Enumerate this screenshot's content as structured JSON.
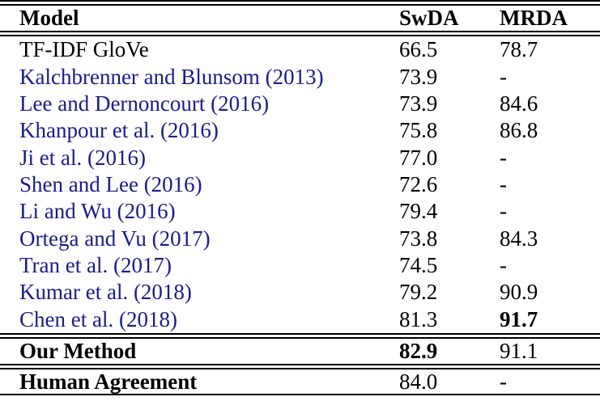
{
  "header": {
    "model": "Model",
    "swda": "SwDA",
    "mrda": "MRDA"
  },
  "rows": [
    {
      "group": "body",
      "model": "TF-IDF GloVe",
      "swda": "66.5",
      "mrda": "78.7",
      "citation": false
    },
    {
      "group": "body",
      "model": "Kalchbrenner and Blunsom (2013)",
      "swda": "73.9",
      "mrda": "-",
      "citation": true
    },
    {
      "group": "body",
      "model": "Lee and Dernoncourt (2016)",
      "swda": "73.9",
      "mrda": "84.6",
      "citation": true
    },
    {
      "group": "body",
      "model": "Khanpour et al. (2016)",
      "swda": "75.8",
      "mrda": "86.8",
      "citation": true
    },
    {
      "group": "body",
      "model": "Ji et al. (2016)",
      "swda": "77.0",
      "mrda": "-",
      "citation": true
    },
    {
      "group": "body",
      "model": "Shen and Lee (2016)",
      "swda": "72.6",
      "mrda": "-",
      "citation": true
    },
    {
      "group": "body",
      "model": "Li and Wu (2016)",
      "swda": "79.4",
      "mrda": "-",
      "citation": true
    },
    {
      "group": "body",
      "model": "Ortega and Vu (2017)",
      "swda": "73.8",
      "mrda": "84.3",
      "citation": true
    },
    {
      "group": "body",
      "model": "Tran et al. (2017)",
      "swda": "74.5",
      "mrda": "-",
      "citation": true
    },
    {
      "group": "body",
      "model": "Kumar et al. (2018)",
      "swda": "79.2",
      "mrda": "90.9",
      "citation": true
    },
    {
      "group": "body",
      "model": "Chen et al. (2018)",
      "swda": "81.3",
      "mrda": "91.7",
      "citation": true,
      "mrda_bold": true
    },
    {
      "group": "ours",
      "model": "Our Method",
      "swda": "82.9",
      "mrda": "91.1",
      "citation": false,
      "model_bold": true,
      "swda_bold": true
    },
    {
      "group": "human",
      "model": "Human Agreement",
      "swda": "84.0",
      "mrda": "-",
      "citation": false,
      "model_bold": true
    }
  ],
  "colors": {
    "citation_link": "#1b1b8a",
    "text": "#000000",
    "background": "#ffffff"
  }
}
